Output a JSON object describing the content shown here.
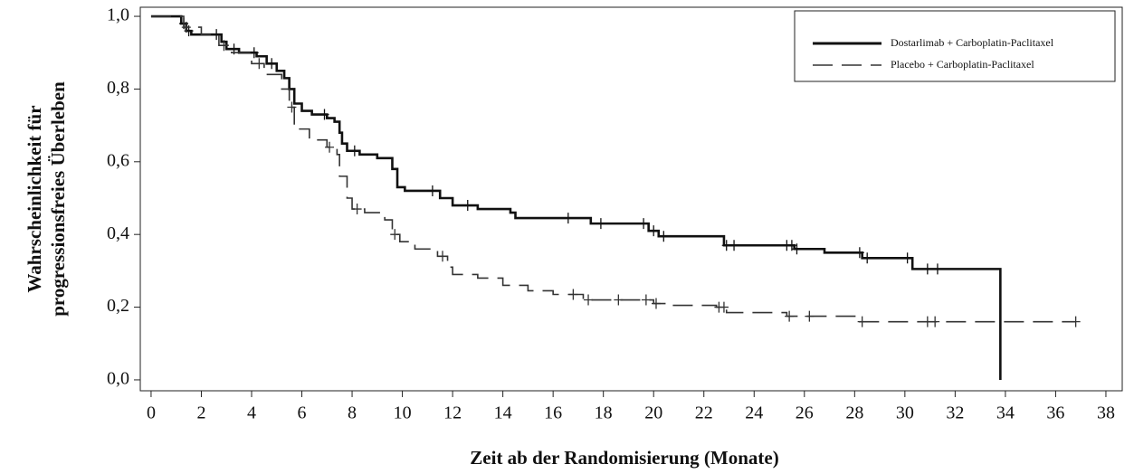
{
  "chart_data": {
    "type": "step",
    "x_label": "Zeit ab der Randomisierung (Monate)",
    "y_label": [
      "Wahrscheinlichkeit für",
      "progressionsfreies Überleben"
    ],
    "xlim": [
      -0.43,
      38.65
    ],
    "ylim": [
      -0.03,
      1.025
    ],
    "xticks": [
      0,
      2,
      4,
      6,
      8,
      10,
      12,
      14,
      16,
      18,
      20,
      22,
      24,
      26,
      28,
      30,
      32,
      34,
      36,
      38
    ],
    "yticks": [
      {
        "value": 0,
        "label": "0,0"
      },
      {
        "value": 0.2,
        "label": "0,2"
      },
      {
        "value": 0.4,
        "label": "0,4"
      },
      {
        "value": 0.6,
        "label": "0,6"
      },
      {
        "value": 0.8,
        "label": "0,8"
      },
      {
        "value": 1,
        "label": "1,0"
      }
    ],
    "series": [
      {
        "name": "Dostarlimab + Carboplatin-Paclitaxel",
        "color": "#111111",
        "dash": "solid",
        "x": [
          0,
          1.2,
          1.4,
          1.6,
          2.8,
          3.0,
          3.5,
          4.2,
          4.6,
          5.0,
          5.3,
          5.5,
          5.7,
          6.0,
          6.4,
          7.0,
          7.3,
          7.5,
          7.6,
          7.8,
          8.3,
          9.0,
          9.6,
          9.8,
          10.1,
          11.5,
          12.0,
          13.0,
          14.3,
          14.5,
          17.5,
          19.8,
          20.2,
          22.8,
          25.6,
          26.8,
          28.3,
          30.3,
          33.8,
          33.8
        ],
        "values": [
          1.0,
          0.98,
          0.96,
          0.95,
          0.93,
          0.91,
          0.9,
          0.89,
          0.87,
          0.85,
          0.83,
          0.8,
          0.76,
          0.74,
          0.73,
          0.72,
          0.71,
          0.68,
          0.65,
          0.63,
          0.62,
          0.61,
          0.58,
          0.53,
          0.52,
          0.5,
          0.48,
          0.47,
          0.46,
          0.445,
          0.43,
          0.41,
          0.395,
          0.37,
          0.36,
          0.35,
          0.335,
          0.305,
          0.305,
          0.0
        ],
        "censored": [
          1.3,
          1.5,
          2.6,
          3.3,
          4.1,
          4.8,
          6.9,
          8.1,
          11.2,
          12.6,
          16.6,
          17.9,
          19.6,
          20.0,
          20.4,
          22.9,
          23.2,
          25.3,
          25.5,
          25.7,
          28.2,
          28.5,
          30.1,
          30.9,
          31.3
        ]
      },
      {
        "name": "Placebo + Carboplatin-Paclitaxel",
        "color": "#333333",
        "dash": "dashed",
        "x": [
          0,
          1.3,
          2.0,
          2.7,
          3.2,
          4.0,
          4.5,
          5.2,
          5.5,
          5.7,
          6.3,
          7.0,
          7.4,
          7.5,
          7.8,
          8.0,
          8.5,
          9.3,
          9.6,
          9.9,
          10.5,
          11.4,
          11.8,
          12.0,
          13.0,
          14.0,
          15.0,
          16.0,
          17.2,
          20.0,
          20.5,
          22.5,
          22.9,
          25.3,
          28.2,
          36.8
        ],
        "values": [
          1.0,
          0.97,
          0.95,
          0.92,
          0.9,
          0.87,
          0.84,
          0.8,
          0.75,
          0.69,
          0.66,
          0.64,
          0.62,
          0.56,
          0.5,
          0.47,
          0.46,
          0.44,
          0.4,
          0.38,
          0.36,
          0.34,
          0.31,
          0.29,
          0.28,
          0.26,
          0.245,
          0.235,
          0.22,
          0.21,
          0.205,
          0.2,
          0.185,
          0.175,
          0.16,
          0.16
        ],
        "censored": [
          1.4,
          2.9,
          4.3,
          5.6,
          7.1,
          8.2,
          9.7,
          11.6,
          16.8,
          17.4,
          18.6,
          19.7,
          20.1,
          22.6,
          22.8,
          25.4,
          26.2,
          28.3,
          30.9,
          31.2,
          36.8
        ]
      }
    ],
    "legend": "upper right"
  }
}
